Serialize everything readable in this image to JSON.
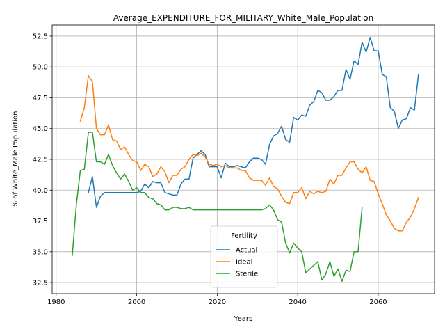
{
  "chart_data": {
    "type": "line",
    "title": "Average_EXPENDITURE_FOR_MILITARY_White_Male_Population",
    "xlabel": "Years",
    "ylabel": "% of White_Male Population",
    "xlim": [
      1979,
      2074
    ],
    "ylim": [
      31.6,
      53.4
    ],
    "xticks": [
      1980,
      2000,
      2020,
      2040,
      2060
    ],
    "xtick_labels": [
      "1980",
      "2000",
      "2020",
      "2040",
      "2060"
    ],
    "yticks": [
      32.5,
      35.0,
      37.5,
      40.0,
      42.5,
      45.0,
      47.5,
      50.0,
      52.5
    ],
    "ytick_labels": [
      "32.5",
      "35.0",
      "37.5",
      "40.0",
      "42.5",
      "45.0",
      "47.5",
      "50.0",
      "52.5"
    ],
    "grid": true,
    "legend": {
      "title": "Fertility",
      "placement": "lower-center"
    },
    "series": [
      {
        "name": "Actual",
        "color": "#1f77b4",
        "x": [
          1988,
          1989,
          1990,
          1991,
          1992,
          1993,
          1994,
          1995,
          1996,
          1997,
          1998,
          1999,
          2000,
          2001,
          2002,
          2003,
          2004,
          2005,
          2006,
          2007,
          2008,
          2009,
          2010,
          2011,
          2012,
          2013,
          2014,
          2015,
          2016,
          2017,
          2018,
          2019,
          2020,
          2021,
          2022,
          2023,
          2024,
          2025,
          2026,
          2027,
          2028,
          2029,
          2030,
          2031,
          2032,
          2033,
          2034,
          2035,
          2036,
          2037,
          2038,
          2039,
          2040,
          2041,
          2042,
          2043,
          2044,
          2045,
          2046,
          2047,
          2048,
          2049,
          2050,
          2051,
          2052,
          2053,
          2054,
          2055,
          2056,
          2057,
          2058,
          2059,
          2060,
          2061,
          2062,
          2063,
          2064,
          2065,
          2066,
          2067,
          2068,
          2069,
          2070
        ],
        "y": [
          39.8,
          41.1,
          38.6,
          39.5,
          39.8,
          39.8,
          39.8,
          39.8,
          39.8,
          39.8,
          39.8,
          39.8,
          39.8,
          39.9,
          40.5,
          40.2,
          40.7,
          40.6,
          40.6,
          39.8,
          39.7,
          39.6,
          39.6,
          40.5,
          40.9,
          40.9,
          42.6,
          42.9,
          43.2,
          42.9,
          41.9,
          41.9,
          41.9,
          41.0,
          42.2,
          41.9,
          41.9,
          42.0,
          41.9,
          41.8,
          42.3,
          42.6,
          42.6,
          42.5,
          42.1,
          43.7,
          44.4,
          44.6,
          45.2,
          44.1,
          43.9,
          45.9,
          45.7,
          46.1,
          46.0,
          46.9,
          47.2,
          48.1,
          47.9,
          47.3,
          47.3,
          47.6,
          48.1,
          48.1,
          49.8,
          49.0,
          50.5,
          50.2,
          52.0,
          51.2,
          52.4,
          51.3,
          51.3,
          49.4,
          49.2,
          46.7,
          46.4,
          45.0,
          45.7,
          45.8,
          46.7,
          46.5,
          49.4
        ]
      },
      {
        "name": "Ideal",
        "color": "#ff7f0e",
        "x": [
          1986,
          1987,
          1988,
          1989,
          1990,
          1991,
          1992,
          1993,
          1994,
          1995,
          1996,
          1997,
          1998,
          1999,
          2000,
          2001,
          2002,
          2003,
          2004,
          2005,
          2006,
          2007,
          2008,
          2009,
          2010,
          2011,
          2012,
          2013,
          2014,
          2015,
          2016,
          2017,
          2018,
          2019,
          2020,
          2021,
          2022,
          2023,
          2024,
          2025,
          2026,
          2027,
          2028,
          2029,
          2030,
          2031,
          2032,
          2033,
          2034,
          2035,
          2036,
          2037,
          2038,
          2039,
          2040,
          2041,
          2042,
          2043,
          2044,
          2045,
          2046,
          2047,
          2048,
          2049,
          2050,
          2051,
          2052,
          2053,
          2054,
          2055,
          2056,
          2057,
          2058,
          2059,
          2060,
          2061,
          2062,
          2063,
          2064,
          2065,
          2066,
          2067,
          2068,
          2069,
          2070
        ],
        "y": [
          45.6,
          46.7,
          49.3,
          48.8,
          45.0,
          44.5,
          44.5,
          45.3,
          44.1,
          44.0,
          43.3,
          43.5,
          42.9,
          42.4,
          42.3,
          41.6,
          42.1,
          41.9,
          41.1,
          41.3,
          41.9,
          41.5,
          40.6,
          41.2,
          41.2,
          41.7,
          41.9,
          42.5,
          42.9,
          42.8,
          43.0,
          42.7,
          42.1,
          42.0,
          42.1,
          41.9,
          42.0,
          41.8,
          41.8,
          41.8,
          41.6,
          41.6,
          41.0,
          40.8,
          40.8,
          40.8,
          40.4,
          41.0,
          40.3,
          40.1,
          39.5,
          39.0,
          38.9,
          39.8,
          39.8,
          40.2,
          39.3,
          39.9,
          39.7,
          39.9,
          39.8,
          39.9,
          40.9,
          40.5,
          41.2,
          41.2,
          41.8,
          42.3,
          42.3,
          41.7,
          41.4,
          41.9,
          40.8,
          40.7,
          39.7,
          38.9,
          38.0,
          37.5,
          36.9,
          36.7,
          36.7,
          37.4,
          37.8,
          38.5,
          39.4
        ]
      },
      {
        "name": "Sterile",
        "color": "#2ca02c",
        "x": [
          1984,
          1985,
          1986,
          1987,
          1988,
          1989,
          1990,
          1991,
          1992,
          1993,
          1994,
          1995,
          1996,
          1997,
          1998,
          1999,
          2000,
          2001,
          2002,
          2003,
          2004,
          2005,
          2006,
          2007,
          2008,
          2009,
          2010,
          2011,
          2012,
          2013,
          2014,
          2015,
          2016,
          2017,
          2018,
          2019,
          2020,
          2021,
          2022,
          2023,
          2024,
          2025,
          2026,
          2027,
          2028,
          2029,
          2030,
          2031,
          2032,
          2033,
          2034,
          2035,
          2036,
          2037,
          2038,
          2039,
          2040,
          2041,
          2042,
          2043,
          2044,
          2045,
          2046,
          2047,
          2048,
          2049,
          2050,
          2051,
          2052,
          2053,
          2054,
          2055,
          2056
        ],
        "y": [
          34.7,
          38.8,
          41.6,
          41.7,
          44.7,
          44.7,
          42.3,
          42.3,
          42.1,
          42.9,
          42.0,
          41.4,
          40.9,
          41.3,
          40.7,
          40.0,
          40.2,
          39.8,
          39.8,
          39.4,
          39.3,
          38.9,
          38.8,
          38.4,
          38.4,
          38.6,
          38.6,
          38.5,
          38.5,
          38.6,
          38.4,
          38.4,
          38.4,
          38.4,
          38.4,
          38.4,
          38.4,
          38.4,
          38.4,
          38.4,
          38.4,
          38.4,
          38.4,
          38.4,
          38.4,
          38.4,
          38.4,
          38.4,
          38.5,
          38.8,
          38.4,
          37.6,
          37.4,
          35.7,
          34.9,
          35.7,
          35.3,
          35.0,
          33.3,
          33.6,
          33.9,
          34.2,
          32.7,
          33.2,
          34.2,
          33.0,
          33.6,
          32.6,
          33.5,
          33.4,
          35.0,
          35.0,
          38.6
        ]
      }
    ]
  }
}
